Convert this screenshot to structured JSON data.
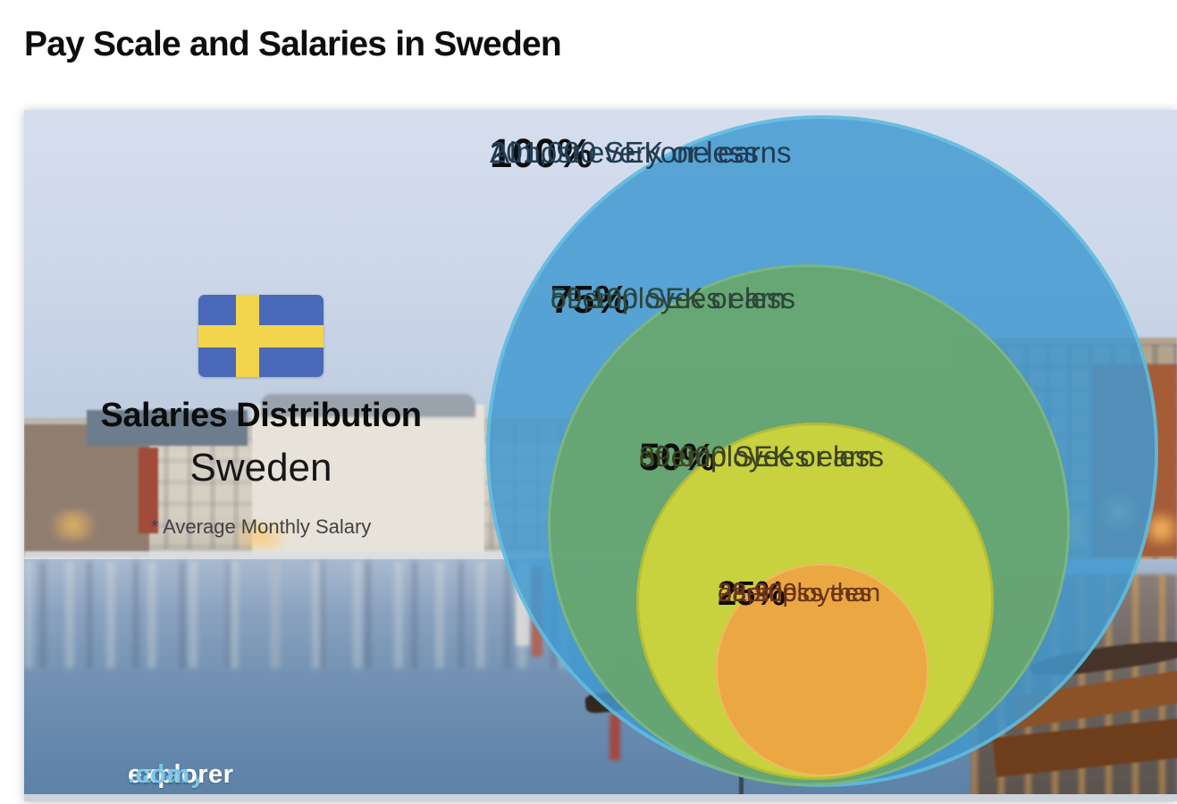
{
  "page": {
    "title": "Pay Scale and Salaries in Sweden"
  },
  "infographic": {
    "heading": "Salaries Distribution",
    "country": "Sweden",
    "note": "* Average Monthly Salary",
    "watermark": {
      "salary": "salary",
      "explorer": "explorer",
      "domain": ".com"
    },
    "flag": {
      "name": "sweden-flag",
      "field_color": "#4a69b8",
      "cross_color": "#f2d44d"
    }
  },
  "chart_data": {
    "type": "nested_circles",
    "title": "Salaries Distribution",
    "region": "Sweden",
    "note": "* Average Monthly Salary",
    "unit": "SEK",
    "legend_position": "none",
    "series": [
      {
        "percent": "100%",
        "line1": "Almost everyone earns",
        "line2": "201,000 SEK or less",
        "value_sek": 201000,
        "color": "#56a4d5"
      },
      {
        "percent": "75%",
        "line1": "of employees earn",
        "line2": "59,100 SEK or less",
        "value_sek": 59100,
        "color": "#73ab79"
      },
      {
        "percent": "50%",
        "line1": "of employees earn",
        "line2": "39,000 SEK or less",
        "value_sek": 39000,
        "color": "#cbd140"
      },
      {
        "percent": "25%",
        "line1": "of employees",
        "line2": "earn less than",
        "line3": "28,200",
        "value_sek": 28200,
        "color": "#e9a746"
      }
    ]
  }
}
